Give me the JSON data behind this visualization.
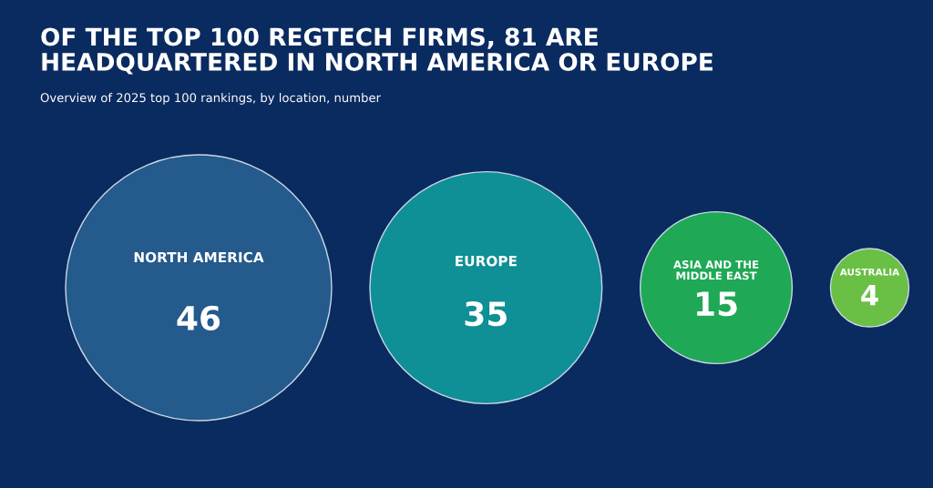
{
  "chart_data": {
    "type": "other",
    "title": "OF THE TOP 100 REGTECH FIRMS, 81 ARE\nHEADQUARTERED IN NORTH AMERICA OR EUROPE",
    "subtitle": "Overview of 2025 top 100 rankings, by location, number",
    "categories": [
      "NORTH AMERICA",
      "EUROPE",
      "ASIA AND THE\nMIDDLE EAST",
      "AUSTRALIA"
    ],
    "values": [
      46,
      35,
      15,
      4
    ],
    "colors": [
      "#245a8c",
      "#0f8f96",
      "#1fa855",
      "#6abf45"
    ],
    "data_labels": true
  }
}
